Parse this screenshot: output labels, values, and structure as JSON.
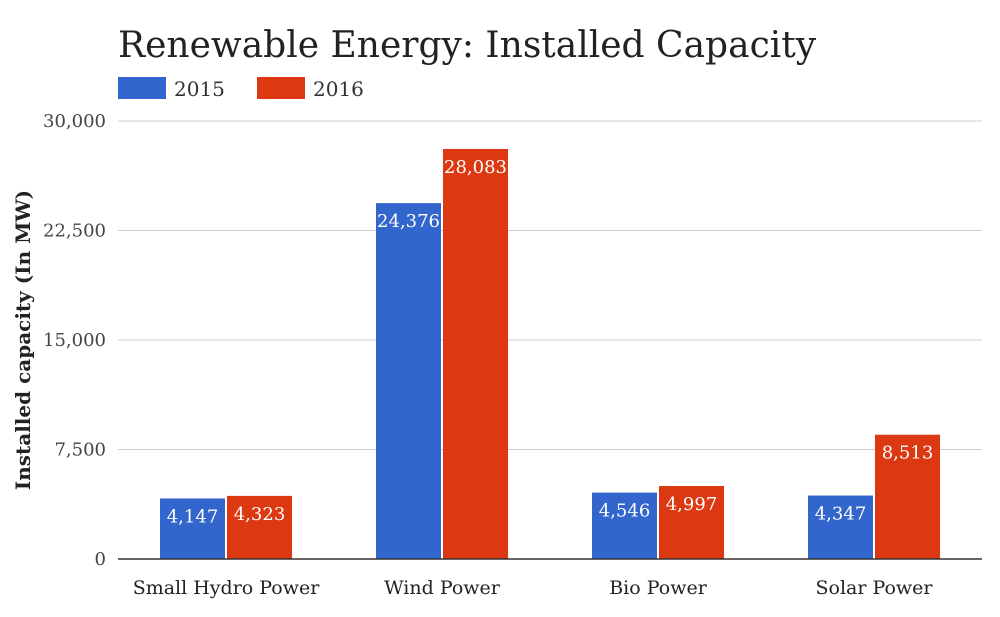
{
  "chart_data": {
    "type": "bar",
    "title": "Renewable Energy: Installed Capacity",
    "xlabel": "",
    "ylabel": "Installed capacity (In MW)",
    "categories": [
      "Small Hydro Power",
      "Wind Power",
      "Bio Power",
      "Solar Power"
    ],
    "series": [
      {
        "name": "2015",
        "color": "#3366cc",
        "values": [
          4147,
          24376,
          4546,
          4347
        ],
        "labels": [
          "4,147",
          "24,376",
          "4,546",
          "4,347"
        ]
      },
      {
        "name": "2016",
        "color": "#dc3912",
        "values": [
          4323,
          28083,
          4997,
          8513
        ],
        "labels": [
          "4,323",
          "28,083",
          "4,997",
          "8,513"
        ]
      }
    ],
    "ylim": [
      0,
      30000
    ],
    "yticks": [
      0,
      7500,
      15000,
      22500,
      30000
    ],
    "ytick_labels": [
      "0",
      "7,500",
      "15,000",
      "22,500",
      "30,000"
    ],
    "grid": true,
    "legend_position": "top-left"
  }
}
